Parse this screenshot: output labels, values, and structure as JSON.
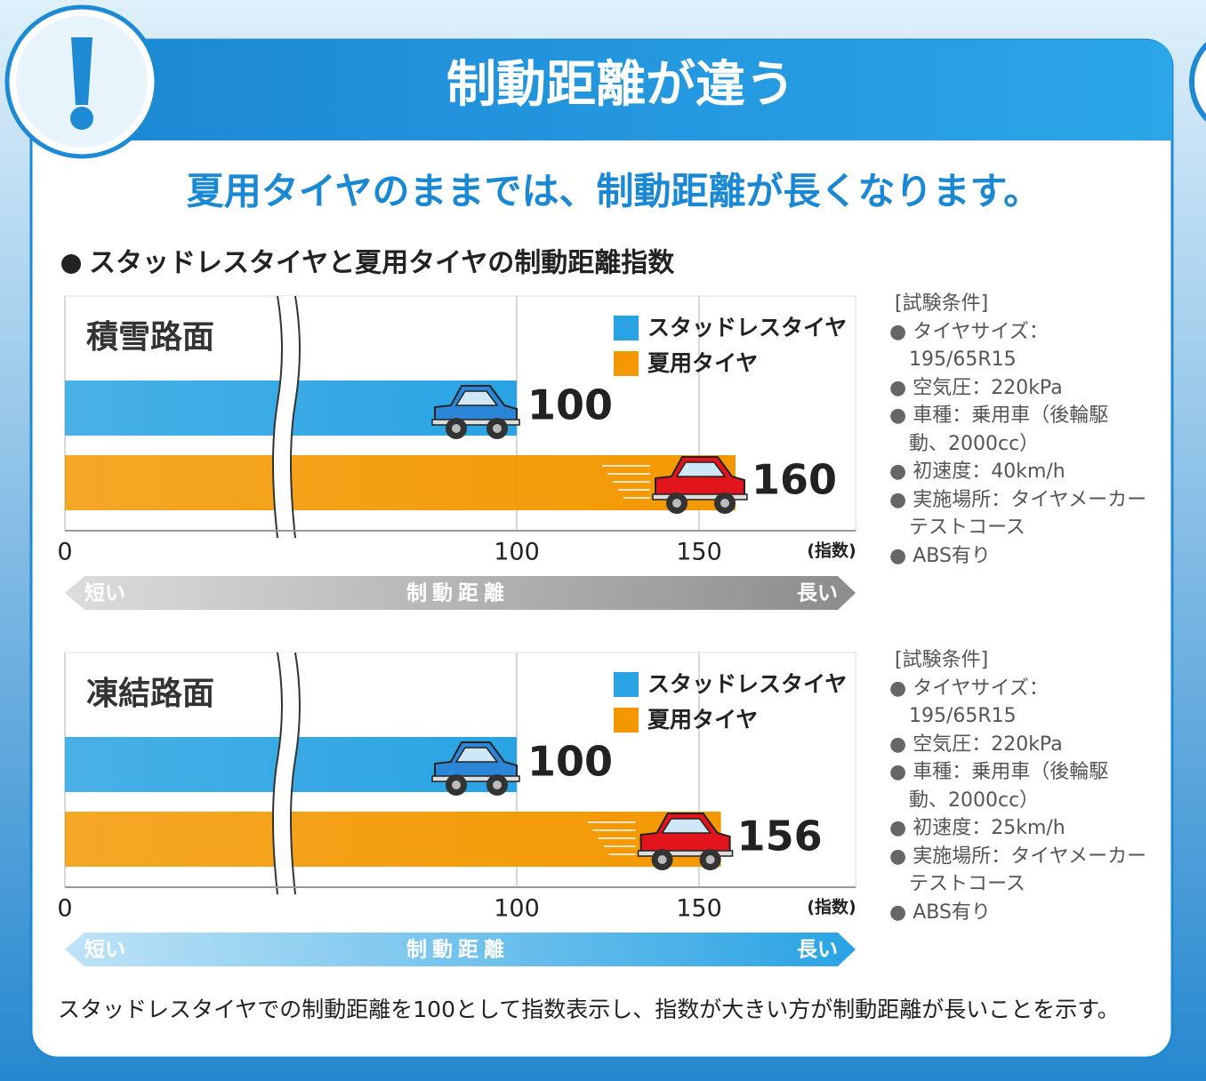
{
  "title": "制動距離が違う",
  "subtitle": "夏用タイヤのままでは、制動距離が長くなります。",
  "section_title": "スタッドレスタイヤと夏用タイヤの制動距離指数",
  "footnote": "スタッドレスタイヤでの制動距離を100として指数表示し、指数が大きい方が制動距離が長いことを示す。",
  "chart_data": [
    {
      "type": "bar",
      "orientation": "horizontal",
      "title": "積雪路面",
      "series": [
        {
          "name": "スタッドレスタイヤ",
          "color": "#29a3e3",
          "values": [
            100
          ]
        },
        {
          "name": "夏用タイヤ",
          "color": "#f39800",
          "values": [
            160
          ]
        }
      ],
      "xlim": [
        0,
        193
      ],
      "xticks": [
        0,
        100,
        150
      ],
      "xlabel": "(指数)",
      "axis_break": true,
      "grid": true,
      "scale_bar": {
        "left": "短い",
        "center": "制動距離",
        "right": "長い",
        "color": "#8c8c8c"
      },
      "conditions": {
        "title": "[試験条件]",
        "items": [
          "タイヤサイズ：195/65R15",
          "空気圧：220kPa",
          "車種：乗用車（後輪駆動、2000cc）",
          "初速度：40km/h",
          "実施場所：タイヤメーカーテストコース",
          "ABS有り"
        ]
      }
    },
    {
      "type": "bar",
      "orientation": "horizontal",
      "title": "凍結路面",
      "series": [
        {
          "name": "スタッドレスタイヤ",
          "color": "#29a3e3",
          "values": [
            100
          ]
        },
        {
          "name": "夏用タイヤ",
          "color": "#f39800",
          "values": [
            156
          ]
        }
      ],
      "xlim": [
        0,
        193
      ],
      "xticks": [
        0,
        100,
        150
      ],
      "xlabel": "(指数)",
      "axis_break": true,
      "grid": true,
      "scale_bar": {
        "left": "短い",
        "center": "制動距離",
        "right": "長い",
        "color": "#29a3e3"
      },
      "conditions": {
        "title": "[試験条件]",
        "items": [
          "タイヤサイズ：195/65R15",
          "空気圧：220kPa",
          "車種：乗用車（後輪駆動、2000cc）",
          "初速度：25km/h",
          "実施場所：タイヤメーカーテストコース",
          "ABS有り"
        ]
      }
    }
  ]
}
